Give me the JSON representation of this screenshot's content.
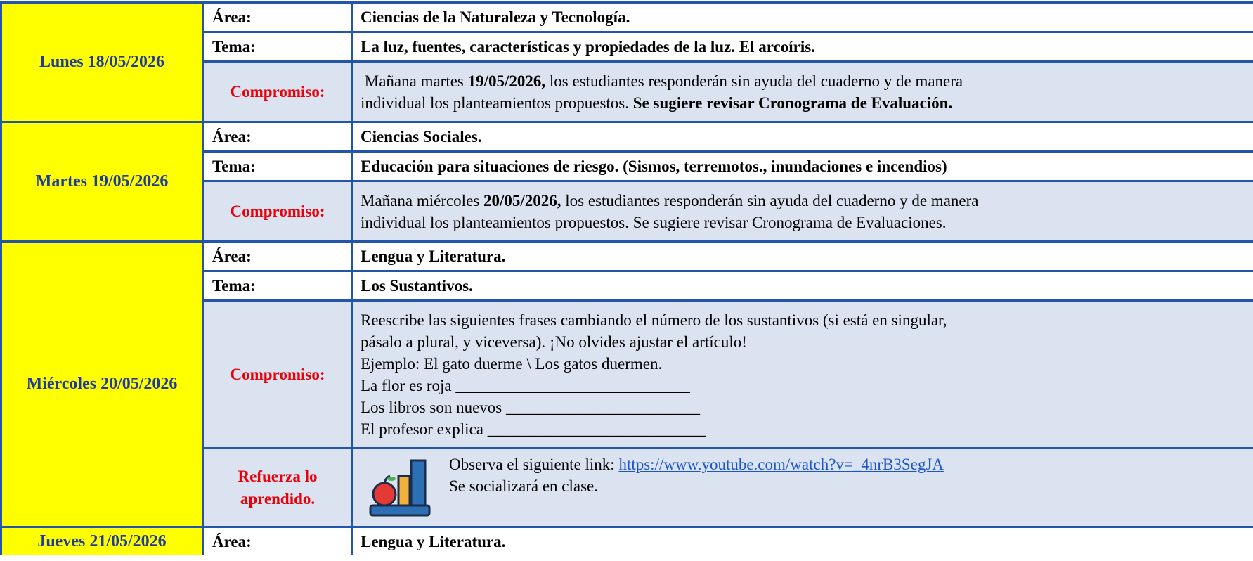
{
  "days": [
    {
      "day": "Lunes 18/05/2026",
      "rows": [
        {
          "label": "Área:",
          "lines": [
            [
              {
                "text": "Ciencias de la Naturaleza y Tecnología.",
                "bold": true
              }
            ]
          ]
        },
        {
          "label": "Tema:",
          "lines": [
            [
              {
                "text": "La luz, fuentes, características y propiedades de la luz. El arcoíris.",
                "bold": true
              }
            ]
          ]
        },
        {
          "label": "Compromiso:",
          "emphasis": true,
          "highlight": true,
          "lines": [
            [
              {
                "text": " Mañana martes ",
                "bold": false
              },
              {
                "text": "19/05/2026,",
                "bold": true
              },
              {
                "text": " los estudiantes responderán sin ayuda del cuaderno y de manera",
                "bold": false
              }
            ],
            [
              {
                "text": "individual los planteamientos propuestos. ",
                "bold": false
              },
              {
                "text": "Se sugiere revisar Cronograma de Evaluación.",
                "bold": true
              }
            ]
          ]
        }
      ]
    },
    {
      "day": "Martes 19/05/2026",
      "rows": [
        {
          "label": "Área:",
          "lines": [
            [
              {
                "text": "Ciencias Sociales.",
                "bold": true
              }
            ]
          ]
        },
        {
          "label": "Tema:",
          "lines": [
            [
              {
                "text": "Educación para situaciones de riesgo. (Sismos, terremotos., inundaciones e incendios)",
                "bold": true
              }
            ]
          ]
        },
        {
          "label": "Compromiso:",
          "emphasis": true,
          "highlight": true,
          "lines": [
            [
              {
                "text": "Mañana miércoles ",
                "bold": false
              },
              {
                "text": "20/05/2026,",
                "bold": true
              },
              {
                "text": " los estudiantes responderán sin ayuda del cuaderno y de manera",
                "bold": false
              }
            ],
            [
              {
                "text": "individual los planteamientos propuestos. Se sugiere revisar Cronograma de Evaluaciones.",
                "bold": false
              }
            ]
          ]
        }
      ]
    },
    {
      "day": "Miércoles 20/05/2026",
      "rows": [
        {
          "label": "Área:",
          "lines": [
            [
              {
                "text": "Lengua y Literatura.",
                "bold": true
              }
            ]
          ]
        },
        {
          "label": "Tema:",
          "lines": [
            [
              {
                "text": "Los Sustantivos.",
                "bold": true
              }
            ]
          ]
        },
        {
          "label": "Compromiso:",
          "emphasis": true,
          "highlight": true,
          "lines": [
            [
              {
                "text": "Reescribe las siguientes frases cambiando el número de los sustantivos (si está en singular,",
                "bold": false
              }
            ],
            [
              {
                "text": "pásalo a plural, y viceversa). ¡No olvides ajustar el artículo!",
                "bold": false
              }
            ],
            [
              {
                "text": "Ejemplo: El gato duerme \\ Los gatos duermen.",
                "bold": false
              }
            ],
            [
              {
                "text": "La flor es roja _____________________________",
                "bold": false
              }
            ],
            [
              {
                "text": "Los libros son nuevos ________________________",
                "bold": false
              }
            ],
            [
              {
                "text": "El profesor explica ___________________________",
                "bold": false
              }
            ]
          ]
        },
        {
          "label": [
            "Refuerza lo",
            "aprendido."
          ],
          "emphasis": true,
          "highlight": true,
          "icon": true,
          "lines": [
            [
              {
                "text": "Observa el siguiente link: ",
                "bold": false
              },
              {
                "text": "https://www.youtube.com/watch?v=_4nrB3SegJA",
                "bold": false,
                "link": true
              }
            ],
            [
              {
                "text": "Se socializará en clase.",
                "bold": false
              }
            ]
          ]
        }
      ]
    },
    {
      "day": "Jueves 21/05/2026",
      "rows": [
        {
          "label": "Área:",
          "lines": [
            [
              {
                "text": "Lengua y Literatura.",
                "bold": true
              }
            ]
          ]
        }
      ]
    }
  ]
}
